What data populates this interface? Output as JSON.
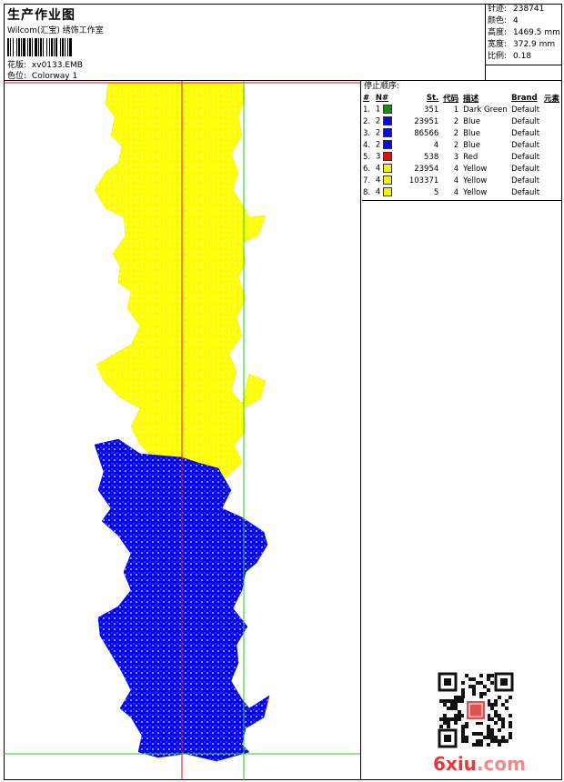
{
  "header": {
    "title": "生产作业图",
    "company": "Wilcom(汇宝) 绣饰工作室",
    "design_label": "花版:",
    "design_value": "xv0133.EMB",
    "colorway_label": "色位:",
    "colorway_value": "Colorway 1"
  },
  "stats": [
    {
      "label": "针迹:",
      "value": "238741"
    },
    {
      "label": "颜色:",
      "value": "4"
    },
    {
      "label": "高度:",
      "value": "1469.5 mm"
    },
    {
      "label": "宽度:",
      "value": "372.9 mm"
    },
    {
      "label": "比例:",
      "value": "0.18"
    }
  ],
  "stop_sequence": {
    "title": "停止顺序:",
    "columns": [
      "#",
      "N#",
      "St.",
      "代码",
      "描述",
      "Brand",
      "元素"
    ],
    "rows": [
      {
        "idx": "1.",
        "n": "1",
        "st": "351",
        "code": "1",
        "desc": "Dark Green",
        "brand": "Default",
        "color": "#1a8a1a"
      },
      {
        "idx": "2.",
        "n": "2",
        "st": "23951",
        "code": "2",
        "desc": "Blue",
        "brand": "Default",
        "color": "#0a0ae0"
      },
      {
        "idx": "3.",
        "n": "2",
        "st": "86566",
        "code": "2",
        "desc": "Blue",
        "brand": "Default",
        "color": "#0a0ae0"
      },
      {
        "idx": "4.",
        "n": "2",
        "st": "4",
        "code": "2",
        "desc": "Blue",
        "brand": "Default",
        "color": "#0a0ae0"
      },
      {
        "idx": "5.",
        "n": "3",
        "st": "538",
        "code": "3",
        "desc": "Red",
        "brand": "Default",
        "color": "#e01010"
      },
      {
        "idx": "6.",
        "n": "4",
        "st": "23954",
        "code": "4",
        "desc": "Yellow",
        "brand": "Default",
        "color": "#f5f500"
      },
      {
        "idx": "7.",
        "n": "4",
        "st": "103371",
        "code": "4",
        "desc": "Yellow",
        "brand": "Default",
        "color": "#f5f500"
      },
      {
        "idx": "8.",
        "n": "4",
        "st": "5",
        "code": "4",
        "desc": "Yellow",
        "brand": "Default",
        "color": "#f5f500"
      }
    ]
  },
  "watermark": {
    "main": "6xiu",
    "suffix": ".com"
  },
  "colors": {
    "yellow": "#ffff00",
    "blue": "#0000ff",
    "red_guide": "#e01010",
    "green_guide": "#22cc22"
  }
}
